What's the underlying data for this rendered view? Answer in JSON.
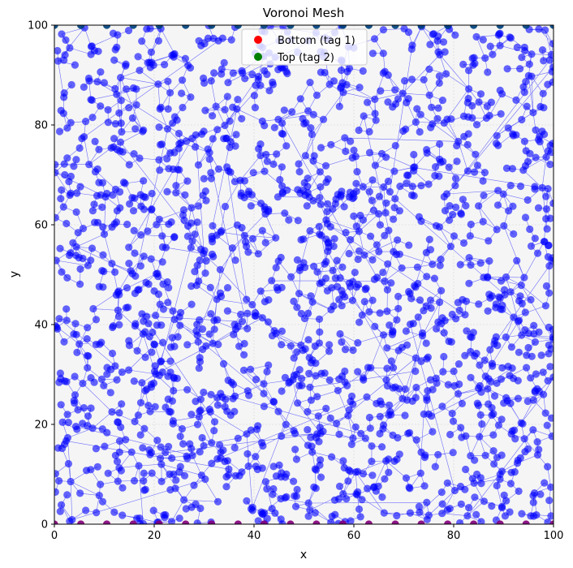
{
  "chart_data": {
    "type": "scatter",
    "title": "Voronoi Mesh",
    "xlabel": "x",
    "ylabel": "y",
    "xlim": [
      0,
      100
    ],
    "ylim": [
      0,
      100
    ],
    "xticks": [
      "0",
      "20",
      "40",
      "60",
      "80",
      "100"
    ],
    "yticks": [
      "0",
      "20",
      "40",
      "60",
      "80",
      "100"
    ],
    "grid": true,
    "legend_position": "top-center",
    "series": [
      {
        "name": "Bottom (tag 1)",
        "color": "#ff0000",
        "edge": "bottom",
        "x": [
          0,
          5.3,
          10.5,
          15.8,
          21,
          26.3,
          31.5,
          36.8,
          42,
          47.3,
          52.5,
          57.8,
          63,
          68.3,
          73.5,
          78.8,
          84,
          89.3,
          94.5,
          100
        ],
        "y": [
          0,
          0,
          0,
          0,
          0,
          0,
          0,
          0,
          0,
          0,
          0,
          0,
          0,
          0,
          0,
          0,
          0,
          0,
          0,
          0
        ]
      },
      {
        "name": "Top (tag 2)",
        "color": "#008000",
        "edge": "top",
        "x": [
          0,
          5.3,
          10.5,
          15.8,
          21,
          26.3,
          31.5,
          36.8,
          42,
          47.3,
          52.5,
          57.8,
          63,
          68.3,
          73.5,
          78.8,
          84,
          89.3,
          94.5,
          100
        ],
        "y": [
          100,
          100,
          100,
          100,
          100,
          100,
          100,
          100,
          100,
          100,
          100,
          100,
          100,
          100,
          100,
          100,
          100,
          100,
          100,
          100
        ]
      },
      {
        "color": "#0000ff",
        "vertex_count": 1800,
        "x_range": [
          0,
          100
        ],
        "y_range": [
          0,
          100
        ]
      }
    ],
    "colors": {
      "background": "#f5f5f5",
      "vertex": "#0000ff",
      "edge": "#0000ff",
      "bottom": "#ff0000",
      "top": "#008000"
    }
  }
}
